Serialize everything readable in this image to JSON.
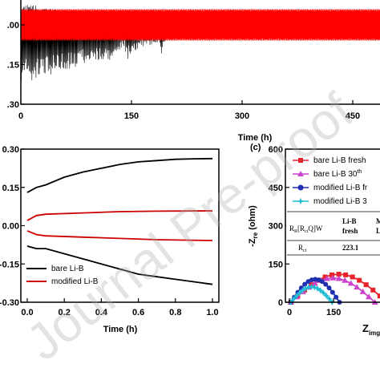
{
  "watermark": "Journal Pre-proof",
  "chart_data": [
    {
      "type": "line",
      "panel": "top",
      "xlabel": "Time (h)",
      "x_ticks": [
        "0",
        "150",
        "300",
        "450"
      ],
      "y_ticks": [
        ".00",
        ".15",
        ".30"
      ],
      "xlim": [
        0,
        500
      ],
      "ylim": [
        -0.3,
        0.1
      ],
      "series": [
        {
          "color": "#000000",
          "envelope": [
            [
              0,
              0.08
            ],
            [
              30,
              0.07
            ],
            [
              60,
              0.05
            ],
            [
              100,
              0.05
            ],
            [
              140,
              0.04
            ],
            [
              160,
              0.03
            ],
            [
              190,
              0.03
            ],
            [
              200,
              0.02
            ],
            [
              500,
              0.02
            ]
          ],
          "envelope_low": [
            [
              0,
              -0.22
            ],
            [
              30,
              -0.2
            ],
            [
              60,
              -0.17
            ],
            [
              100,
              -0.14
            ],
            [
              120,
              -0.14
            ],
            [
              140,
              -0.09
            ],
            [
              145,
              -0.13
            ],
            [
              160,
              -0.09
            ],
            [
              185,
              -0.07
            ],
            [
              190,
              -0.12
            ],
            [
              200,
              -0.03
            ],
            [
              500,
              -0.03
            ]
          ]
        },
        {
          "color": "#ff0000",
          "amplitude": 0.06,
          "x_range": [
            0,
            500
          ]
        }
      ]
    },
    {
      "type": "line",
      "panel": "bottom-left",
      "xlabel": "Time (h)",
      "x_ticks": [
        "0.0",
        "0.2",
        "0.4",
        "0.6",
        "0.8",
        "1.0"
      ],
      "y_ticks": [
        "0.30",
        "0.15",
        "0.00",
        "-0.15",
        "-0.30"
      ],
      "xlim": [
        0,
        1.0
      ],
      "ylim": [
        -0.3,
        0.3
      ],
      "legend": "bottom-left",
      "series": [
        {
          "name": "bare Li-B",
          "color": "#000000",
          "upper": [
            [
              0,
              0.13
            ],
            [
              0.05,
              0.15
            ],
            [
              0.1,
              0.16
            ],
            [
              0.2,
              0.19
            ],
            [
              0.3,
              0.21
            ],
            [
              0.4,
              0.225
            ],
            [
              0.5,
              0.24
            ],
            [
              0.6,
              0.25
            ],
            [
              0.7,
              0.255
            ],
            [
              0.8,
              0.26
            ],
            [
              0.9,
              0.262
            ],
            [
              1.0,
              0.263
            ]
          ],
          "lower": [
            [
              0,
              -0.08
            ],
            [
              0.05,
              -0.09
            ],
            [
              0.1,
              -0.09
            ],
            [
              0.2,
              -0.11
            ],
            [
              0.3,
              -0.13
            ],
            [
              0.4,
              -0.15
            ],
            [
              0.5,
              -0.17
            ],
            [
              0.6,
              -0.19
            ],
            [
              0.7,
              -0.2
            ],
            [
              0.8,
              -0.21
            ],
            [
              0.9,
              -0.22
            ],
            [
              1.0,
              -0.23
            ]
          ]
        },
        {
          "name": "modified Li-B",
          "color": "#cc0000",
          "upper": [
            [
              0,
              0.02
            ],
            [
              0.05,
              0.04
            ],
            [
              0.1,
              0.045
            ],
            [
              0.3,
              0.05
            ],
            [
              0.5,
              0.055
            ],
            [
              0.7,
              0.057
            ],
            [
              1.0,
              0.058
            ]
          ],
          "lower": [
            [
              0,
              -0.02
            ],
            [
              0.05,
              -0.035
            ],
            [
              0.1,
              -0.04
            ],
            [
              0.3,
              -0.045
            ],
            [
              0.5,
              -0.05
            ],
            [
              0.7,
              -0.055
            ],
            [
              1.0,
              -0.058
            ]
          ]
        }
      ]
    },
    {
      "type": "scatter",
      "panel": "bottom-right",
      "panel_label": "(c)",
      "ylabel": "-Z",
      "ylabel_sub": "re",
      "ylabel_unit": " (ohm)",
      "xlabel": "Z",
      "xlabel_sub": "img",
      "x_ticks": [
        "0",
        "150"
      ],
      "y_ticks": [
        "600",
        "450",
        "300",
        "150",
        "0"
      ],
      "xlim": [
        0,
        340
      ],
      "ylim": [
        0,
        600
      ],
      "legend": "top",
      "series": [
        {
          "name": "bare Li-B fresh",
          "color": "#e8222a",
          "marker": "square",
          "arc": {
            "x0": 5,
            "x1": 330,
            "peak": 110
          }
        },
        {
          "name": "bare Li-B 30",
          "name_sup": "th",
          "color": "#cc44cc",
          "marker": "triangle",
          "arc": {
            "x0": 5,
            "x1": 290,
            "peak": 95
          }
        },
        {
          "name": "modified Li-B fr",
          "color": "#1f2fb0",
          "marker": "circle",
          "arc": {
            "x0": 5,
            "x1": 170,
            "peak": 90
          }
        },
        {
          "name": "modified Li-B 3",
          "color": "#22bcd4",
          "marker": "star",
          "arc": {
            "x0": 5,
            "x1": 145,
            "peak": 60
          }
        }
      ],
      "table": {
        "header": [
          "R",
          "R",
          "[R",
          "Q]W",
          "Li-B",
          "fresh",
          "M",
          "Li"
        ],
        "rows": [
          [
            "R",
            "ct",
            "223.1"
          ]
        ]
      }
    }
  ]
}
